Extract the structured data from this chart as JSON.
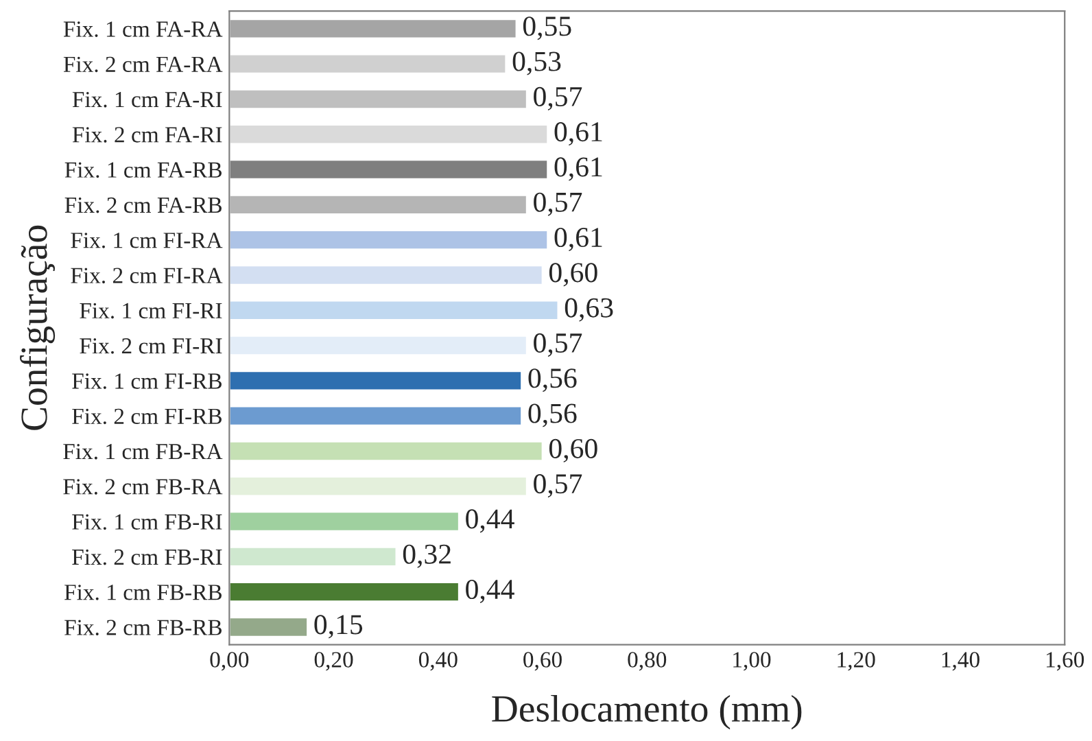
{
  "chart_data": {
    "type": "bar",
    "orientation": "horizontal",
    "xlabel": "Deslocamento (mm)",
    "ylabel": "Configuração",
    "categories": [
      "Fix. 1 cm FA-RA",
      "Fix. 2 cm FA-RA",
      "Fix. 1 cm FA-RI",
      "Fix. 2 cm FA-RI",
      "Fix. 1 cm FA-RB",
      "Fix. 2 cm FA-RB",
      "Fix. 1 cm FI-RA",
      "Fix. 2 cm FI-RA",
      "Fix. 1 cm FI-RI",
      "Fix. 2 cm FI-RI",
      "Fix. 1 cm FI-RB",
      "Fix. 2 cm FI-RB",
      "Fix. 1 cm FB-RA",
      "Fix. 2 cm FB-RA",
      "Fix. 1 cm FB-RI",
      "Fix. 2 cm FB-RI",
      "Fix. 1 cm FB-RB",
      "Fix. 2 cm FB-RB"
    ],
    "values": [
      0.55,
      0.53,
      0.57,
      0.61,
      0.61,
      0.57,
      0.61,
      0.6,
      0.63,
      0.57,
      0.56,
      0.56,
      0.6,
      0.57,
      0.44,
      0.32,
      0.44,
      0.15
    ],
    "value_labels": [
      "0,55",
      "0,53",
      "0,57",
      "0,61",
      "0,61",
      "0,57",
      "0,61",
      "0,60",
      "0,63",
      "0,57",
      "0,56",
      "0,56",
      "0,60",
      "0,57",
      "0,44",
      "0,32",
      "0,44",
      "0,15"
    ],
    "colors": [
      "#a5a5a5",
      "#d0d0d0",
      "#bfbfbf",
      "#dadada",
      "#7f7f7f",
      "#b5b5b5",
      "#adc3e6",
      "#d3dff2",
      "#c0d8f0",
      "#e3edf8",
      "#2e6fb0",
      "#6c9bd0",
      "#c5e0b4",
      "#e4f0dc",
      "#9fd09f",
      "#cfe8cf",
      "#4a7c32",
      "#94a98a"
    ],
    "xlim": [
      0,
      1.6
    ],
    "xticks": [
      {
        "value": 0,
        "label": "0,00"
      },
      {
        "value": 0.2,
        "label": "0,20"
      },
      {
        "value": 0.4,
        "label": "0,40"
      },
      {
        "value": 0.6,
        "label": "0,60"
      },
      {
        "value": 0.8,
        "label": "0,80"
      },
      {
        "value": 1.0,
        "label": "1,00"
      },
      {
        "value": 1.2,
        "label": "1,20"
      },
      {
        "value": 1.4,
        "label": "1,40"
      },
      {
        "value": 1.6,
        "label": "1,60"
      }
    ],
    "grid": false,
    "legend": false
  }
}
